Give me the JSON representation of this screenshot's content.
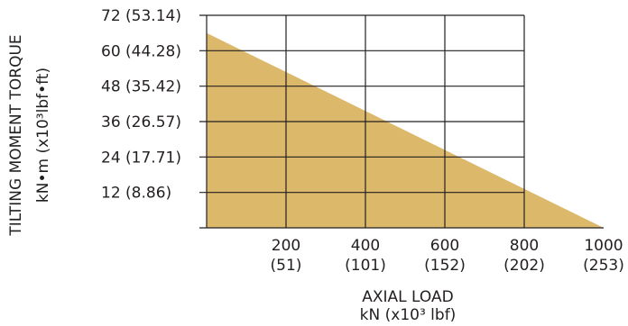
{
  "chart_data": {
    "type": "area",
    "x_axis": {
      "title_line1": "AXIAL LOAD",
      "title_line2": "kN (x10³ lbf)",
      "range": [
        0,
        1000
      ],
      "ticks": [
        {
          "value": 200,
          "label": "200",
          "sublabel": "(51)"
        },
        {
          "value": 400,
          "label": "400",
          "sublabel": "(101)"
        },
        {
          "value": 600,
          "label": "600",
          "sublabel": "(152)"
        },
        {
          "value": 800,
          "label": "800",
          "sublabel": "(202)"
        },
        {
          "value": 1000,
          "label": "1000",
          "sublabel": "(253)"
        }
      ]
    },
    "y_axis": {
      "title_line1": "TILTING MOMENT TORQUE",
      "title_line2": "kN•m (x10³lbf•ft)",
      "range": [
        0,
        72
      ],
      "ticks": [
        {
          "value": 12,
          "label": "12 (8.86)"
        },
        {
          "value": 24,
          "label": "24 (17.71)"
        },
        {
          "value": 36,
          "label": "36 (26.57)"
        },
        {
          "value": 48,
          "label": "48 (35.42)"
        },
        {
          "value": 60,
          "label": "60 (44.28)"
        },
        {
          "value": 72,
          "label": "72 (53.14)"
        }
      ]
    },
    "series": [
      {
        "x": [
          0,
          1000
        ],
        "y": [
          66,
          0
        ],
        "fill": "#dcb86b"
      }
    ],
    "grid": true,
    "colors": {
      "fill": "#dcb86b",
      "grid": "#231f20",
      "text": "#231f20"
    }
  }
}
